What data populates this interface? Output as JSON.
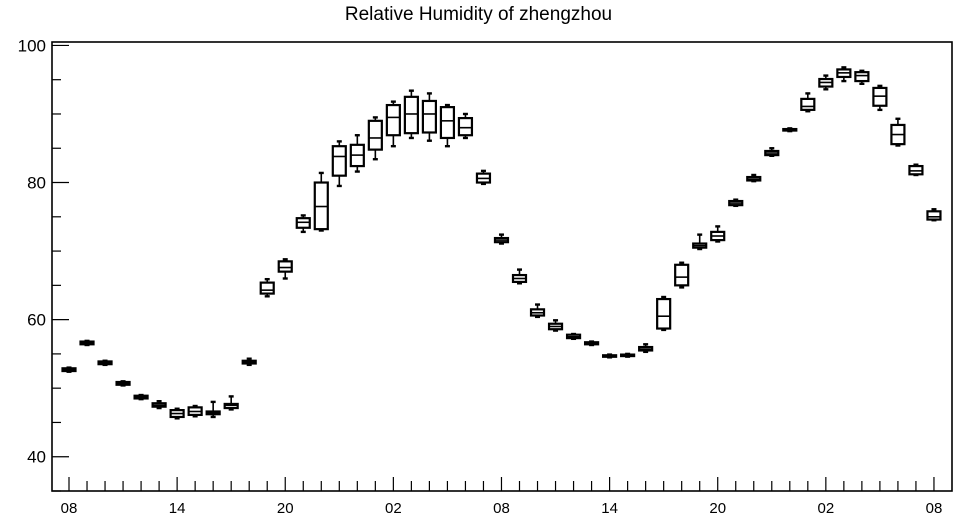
{
  "chart_data": {
    "type": "boxplot",
    "title": "Relative Humidity of zhengzhou",
    "xlabel": "",
    "ylabel": "",
    "ylim": [
      35,
      100.5
    ],
    "y_ticks": [
      40,
      60,
      80,
      100
    ],
    "x_tick_labels": [
      "08",
      "14",
      "20",
      "02",
      "08",
      "14",
      "20",
      "02",
      "08"
    ],
    "x_tick_label_positions": [
      0,
      6,
      12,
      18,
      24,
      30,
      36,
      42,
      48
    ],
    "grid": false,
    "series": [
      {
        "x": 0,
        "min": 52.4,
        "q1": 52.5,
        "median": 52.7,
        "q3": 52.9,
        "max": 53.0
      },
      {
        "x": 1,
        "min": 56.3,
        "q1": 56.4,
        "median": 56.6,
        "q3": 56.8,
        "max": 56.9
      },
      {
        "x": 2,
        "min": 53.4,
        "q1": 53.5,
        "median": 53.7,
        "q3": 53.9,
        "max": 54.0
      },
      {
        "x": 3,
        "min": 50.4,
        "q1": 50.5,
        "median": 50.7,
        "q3": 50.9,
        "max": 51.0
      },
      {
        "x": 4,
        "min": 48.4,
        "q1": 48.5,
        "median": 48.7,
        "q3": 48.9,
        "max": 49.0
      },
      {
        "x": 5,
        "min": 47.1,
        "q1": 47.3,
        "median": 47.5,
        "q3": 47.8,
        "max": 48.1
      },
      {
        "x": 6,
        "min": 45.6,
        "q1": 45.8,
        "median": 46.3,
        "q3": 46.8,
        "max": 47.0
      },
      {
        "x": 7,
        "min": 45.9,
        "q1": 46.1,
        "median": 46.6,
        "q3": 47.2,
        "max": 47.4
      },
      {
        "x": 8,
        "min": 45.8,
        "q1": 46.2,
        "median": 46.4,
        "q3": 46.6,
        "max": 48.0
      },
      {
        "x": 9,
        "min": 46.9,
        "q1": 47.1,
        "median": 47.5,
        "q3": 47.7,
        "max": 48.8
      },
      {
        "x": 10,
        "min": 53.4,
        "q1": 53.6,
        "median": 53.8,
        "q3": 54.0,
        "max": 54.3
      },
      {
        "x": 11,
        "min": 63.4,
        "q1": 63.8,
        "median": 64.3,
        "q3": 65.4,
        "max": 65.9
      },
      {
        "x": 12,
        "min": 66.0,
        "q1": 67.0,
        "median": 67.6,
        "q3": 68.5,
        "max": 68.8
      },
      {
        "x": 13,
        "min": 72.8,
        "q1": 73.4,
        "median": 74.2,
        "q3": 74.8,
        "max": 75.2
      },
      {
        "x": 14,
        "min": 73.0,
        "q1": 73.2,
        "median": 76.5,
        "q3": 80.0,
        "max": 81.4
      },
      {
        "x": 15,
        "min": 79.5,
        "q1": 81.0,
        "median": 83.8,
        "q3": 85.3,
        "max": 86.0
      },
      {
        "x": 16,
        "min": 81.6,
        "q1": 82.4,
        "median": 84.0,
        "q3": 85.5,
        "max": 86.9
      },
      {
        "x": 17,
        "min": 83.4,
        "q1": 84.8,
        "median": 86.5,
        "q3": 89.0,
        "max": 89.5
      },
      {
        "x": 18,
        "min": 85.3,
        "q1": 86.9,
        "median": 89.5,
        "q3": 91.3,
        "max": 91.8
      },
      {
        "x": 19,
        "min": 86.5,
        "q1": 87.2,
        "median": 90.0,
        "q3": 92.5,
        "max": 93.4
      },
      {
        "x": 20,
        "min": 86.1,
        "q1": 87.3,
        "median": 90.0,
        "q3": 91.9,
        "max": 93.0
      },
      {
        "x": 21,
        "min": 85.3,
        "q1": 86.5,
        "median": 89.0,
        "q3": 91.0,
        "max": 91.3
      },
      {
        "x": 22,
        "min": 86.5,
        "q1": 86.9,
        "median": 88.0,
        "q3": 89.4,
        "max": 90.0
      },
      {
        "x": 23,
        "min": 79.8,
        "q1": 80.0,
        "median": 80.6,
        "q3": 81.3,
        "max": 81.7
      },
      {
        "x": 24,
        "min": 71.1,
        "q1": 71.3,
        "median": 71.6,
        "q3": 71.9,
        "max": 72.4
      },
      {
        "x": 25,
        "min": 65.3,
        "q1": 65.5,
        "median": 66.0,
        "q3": 66.5,
        "max": 67.3
      },
      {
        "x": 26,
        "min": 60.4,
        "q1": 60.6,
        "median": 61.0,
        "q3": 61.5,
        "max": 62.2
      },
      {
        "x": 27,
        "min": 58.4,
        "q1": 58.6,
        "median": 59.0,
        "q3": 59.4,
        "max": 59.9
      },
      {
        "x": 28,
        "min": 57.2,
        "q1": 57.3,
        "median": 57.5,
        "q3": 57.8,
        "max": 57.9
      },
      {
        "x": 29,
        "min": 56.3,
        "q1": 56.4,
        "median": 56.6,
        "q3": 56.7,
        "max": 56.8
      },
      {
        "x": 30,
        "min": 54.5,
        "q1": 54.6,
        "median": 54.7,
        "q3": 54.8,
        "max": 54.9
      },
      {
        "x": 31,
        "min": 54.6,
        "q1": 54.7,
        "median": 54.8,
        "q3": 54.9,
        "max": 55.0
      },
      {
        "x": 32,
        "min": 55.3,
        "q1": 55.5,
        "median": 55.7,
        "q3": 56.0,
        "max": 56.4
      },
      {
        "x": 33,
        "min": 58.5,
        "q1": 58.7,
        "median": 60.5,
        "q3": 63.0,
        "max": 63.3
      },
      {
        "x": 34,
        "min": 64.7,
        "q1": 65.0,
        "median": 66.2,
        "q3": 68.0,
        "max": 68.3
      },
      {
        "x": 35,
        "min": 70.3,
        "q1": 70.5,
        "median": 70.8,
        "q3": 71.1,
        "max": 72.4
      },
      {
        "x": 36,
        "min": 71.4,
        "q1": 71.6,
        "median": 72.2,
        "q3": 72.8,
        "max": 73.6
      },
      {
        "x": 37,
        "min": 76.6,
        "q1": 76.7,
        "median": 77.0,
        "q3": 77.3,
        "max": 77.5
      },
      {
        "x": 38,
        "min": 80.2,
        "q1": 80.3,
        "median": 80.5,
        "q3": 80.8,
        "max": 81.1
      },
      {
        "x": 39,
        "min": 83.9,
        "q1": 84.0,
        "median": 84.3,
        "q3": 84.6,
        "max": 85.0
      },
      {
        "x": 40,
        "min": 87.5,
        "q1": 87.6,
        "median": 87.7,
        "q3": 87.8,
        "max": 87.9
      },
      {
        "x": 41,
        "min": 90.4,
        "q1": 90.6,
        "median": 91.1,
        "q3": 92.2,
        "max": 93.0
      },
      {
        "x": 42,
        "min": 93.6,
        "q1": 94.0,
        "median": 94.6,
        "q3": 95.1,
        "max": 95.6
      },
      {
        "x": 43,
        "min": 94.8,
        "q1": 95.4,
        "median": 96.0,
        "q3": 96.5,
        "max": 96.8
      },
      {
        "x": 44,
        "min": 94.4,
        "q1": 94.8,
        "median": 95.6,
        "q3": 96.1,
        "max": 96.3
      },
      {
        "x": 45,
        "min": 90.6,
        "q1": 91.2,
        "median": 92.6,
        "q3": 93.8,
        "max": 94.1
      },
      {
        "x": 46,
        "min": 85.4,
        "q1": 85.6,
        "median": 87.0,
        "q3": 88.4,
        "max": 89.3
      },
      {
        "x": 47,
        "min": 81.1,
        "q1": 81.2,
        "median": 81.7,
        "q3": 82.4,
        "max": 82.6
      },
      {
        "x": 48,
        "min": 74.5,
        "q1": 74.6,
        "median": 75.0,
        "q3": 75.8,
        "max": 76.1
      }
    ]
  }
}
